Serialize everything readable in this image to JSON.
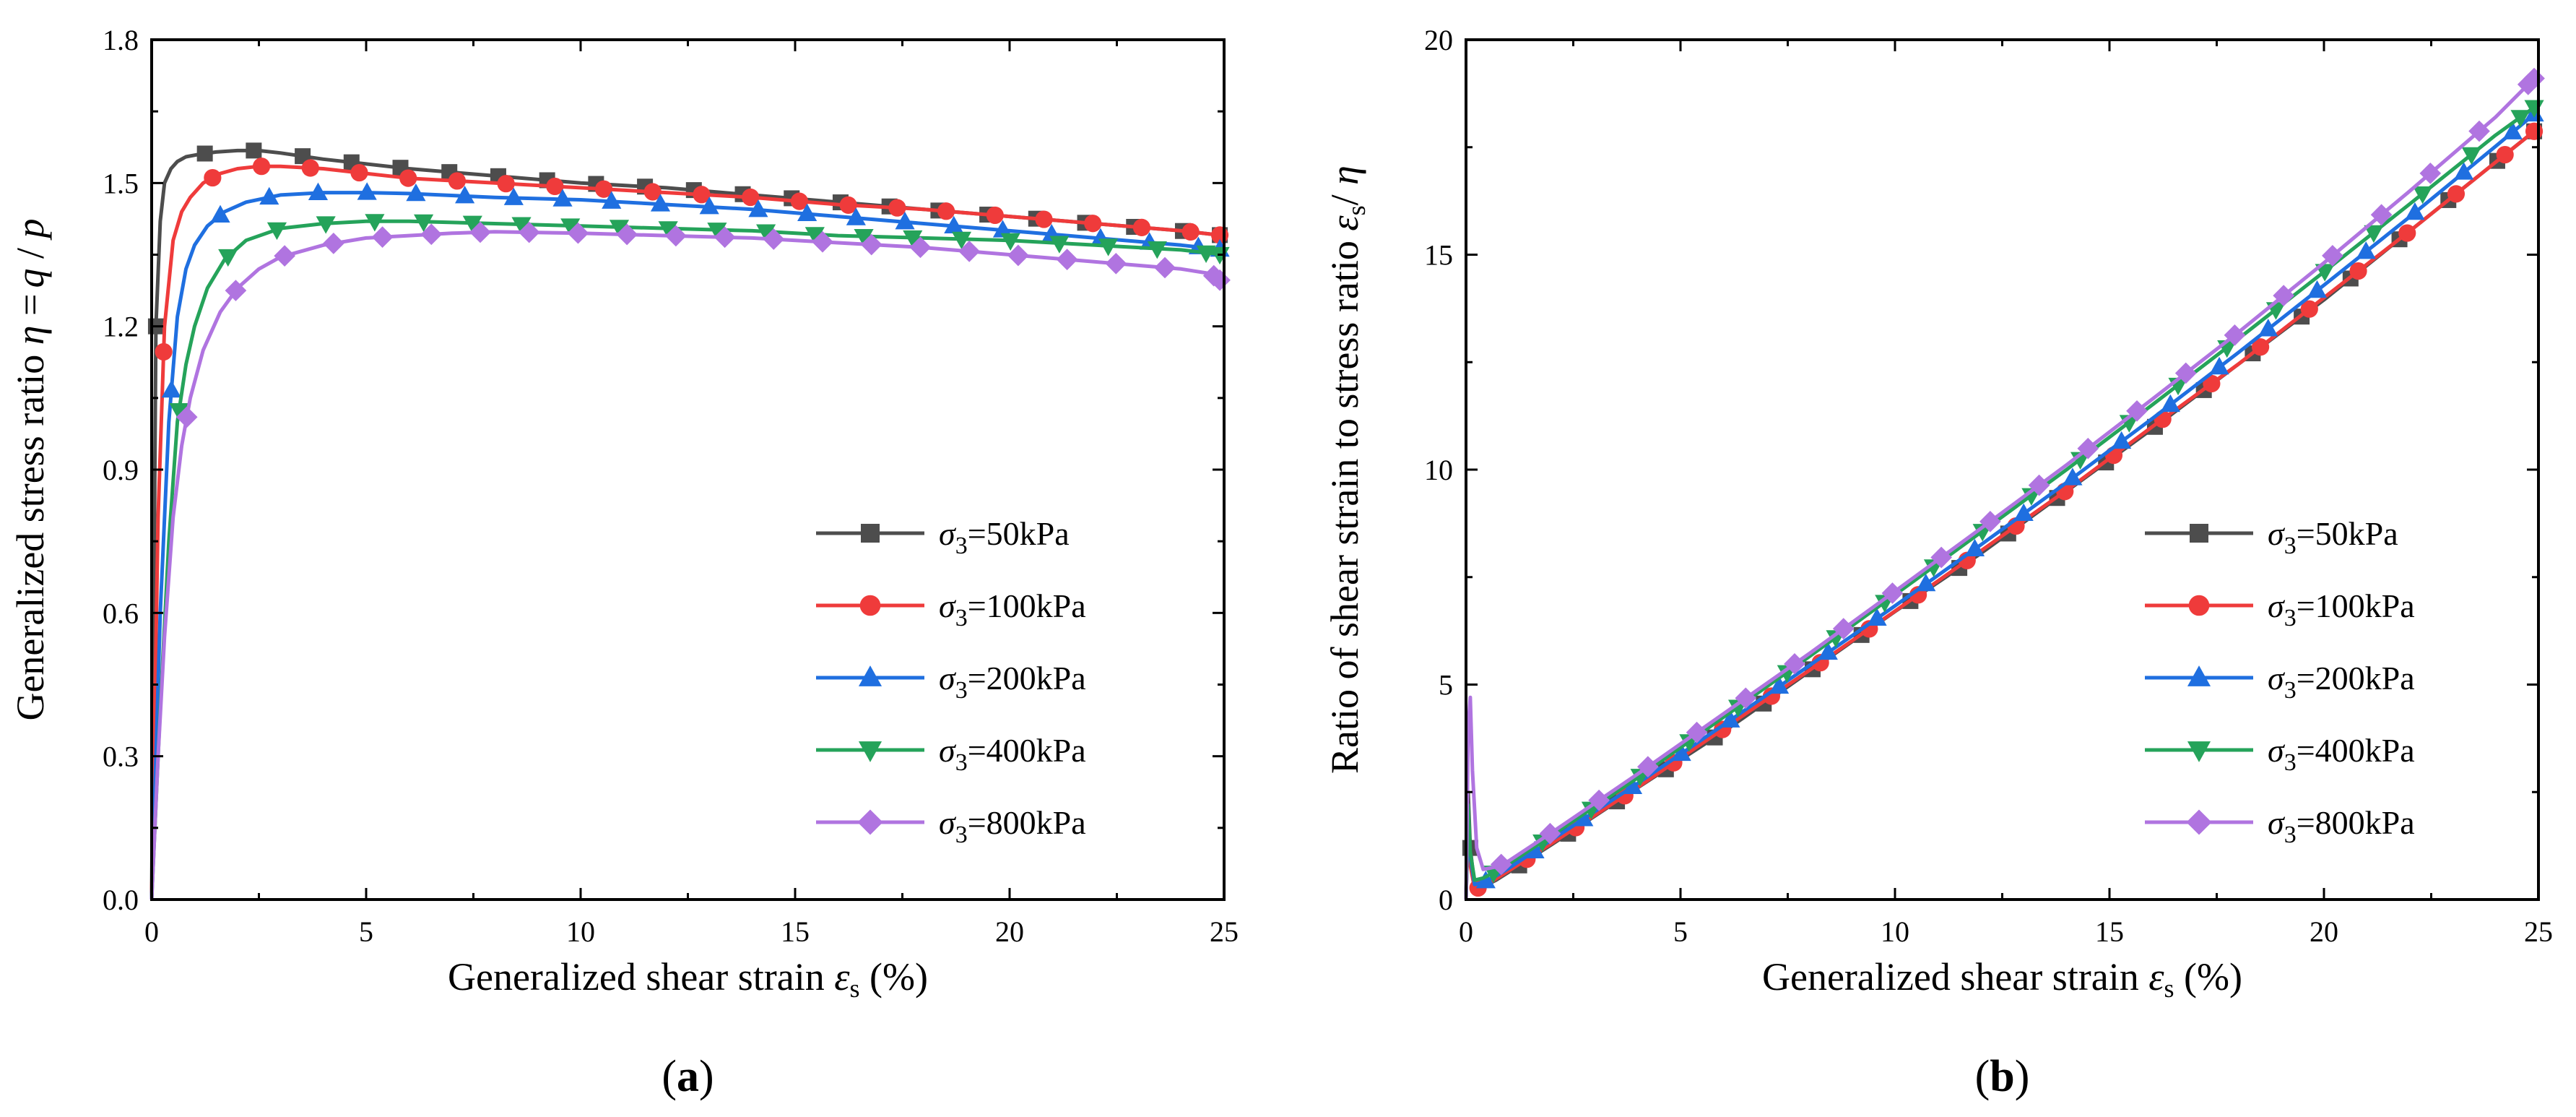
{
  "colors": {
    "s50": "#4d4d4d",
    "s100": "#ef3b3b",
    "s200": "#1f6fe0",
    "s400": "#25a35a",
    "s800": "#b074e0"
  },
  "panels": [
    {
      "id": "a",
      "caption_letter": "a",
      "xlabel_prefix": "Generalized shear strain ",
      "xlabel_symbol": "ε",
      "xlabel_sub": "s",
      "xlabel_suffix": " (%)",
      "ylabel_prefix": "Generalized stress ratio ",
      "ylabel_symbol": "η",
      "ylabel_mid": " =",
      "ylabel_q": "q",
      "ylabel_slash": " / ",
      "ylabel_p": "p"
    },
    {
      "id": "b",
      "caption_letter": "b",
      "xlabel_prefix": "Generalized shear strain ",
      "xlabel_symbol": "ε",
      "xlabel_sub": "s",
      "xlabel_suffix": " (%)",
      "ylabel_prefix": "Ratio of shear strain to stress ratio ",
      "ylabel_symbol": "ε",
      "ylabel_sub": "s",
      "ylabel_slash": "/ ",
      "ylabel_eta": "η"
    }
  ],
  "chart_data": [
    {
      "type": "line",
      "panel": "a",
      "xlabel": "Generalized shear strain εs (%)",
      "ylabel": "Generalized stress ratio η = q / p",
      "xlim": [
        0,
        25
      ],
      "ylim": [
        0,
        1.8
      ],
      "xticks": [
        0,
        5,
        10,
        15,
        20,
        25
      ],
      "yticks": [
        0.0,
        0.3,
        0.6,
        0.9,
        1.2,
        1.5,
        1.8
      ],
      "ytick_labels": [
        "0.0",
        "0.3",
        "0.6",
        "0.9",
        "1.2",
        "1.5",
        "1.8"
      ],
      "legend_position": "right",
      "series": [
        {
          "name": "σ3=50kPa",
          "sym": "σ",
          "sub": "3",
          "rest": "=50kPa",
          "color_key": "s50",
          "marker": "square",
          "x": [
            0,
            0.1,
            0.2,
            0.3,
            0.45,
            0.6,
            0.8,
            1.1,
            1.5,
            2.0,
            2.5,
            3.0,
            4,
            5,
            6,
            8,
            10,
            12,
            14,
            16,
            18,
            20,
            22,
            24,
            25
          ],
          "y": [
            0,
            1.2,
            1.42,
            1.5,
            1.53,
            1.545,
            1.555,
            1.56,
            1.565,
            1.568,
            1.568,
            1.563,
            1.55,
            1.54,
            1.53,
            1.515,
            1.5,
            1.49,
            1.475,
            1.46,
            1.445,
            1.43,
            1.415,
            1.4,
            1.39
          ]
        },
        {
          "name": "σ3=100kPa",
          "sym": "σ",
          "sub": "3",
          "rest": "=100kPa",
          "color_key": "s100",
          "marker": "circle",
          "x": [
            0,
            0.15,
            0.3,
            0.5,
            0.7,
            0.9,
            1.2,
            1.6,
            2.0,
            2.5,
            3.0,
            4,
            5,
            6,
            8,
            10,
            12,
            14,
            16,
            18,
            20,
            22,
            24,
            25
          ],
          "y": [
            0,
            0.8,
            1.2,
            1.38,
            1.44,
            1.47,
            1.5,
            1.52,
            1.53,
            1.535,
            1.535,
            1.53,
            1.52,
            1.51,
            1.5,
            1.49,
            1.48,
            1.47,
            1.455,
            1.445,
            1.43,
            1.415,
            1.4,
            1.39
          ]
        },
        {
          "name": "σ3=200kPa",
          "sym": "σ",
          "sub": "3",
          "rest": "=200kPa",
          "color_key": "s200",
          "marker": "triangle-up",
          "x": [
            0,
            0.2,
            0.4,
            0.6,
            0.8,
            1.0,
            1.3,
            1.7,
            2.2,
            3.0,
            4,
            5,
            6,
            8,
            10,
            12,
            14,
            16,
            18,
            20,
            22,
            24,
            25
          ],
          "y": [
            0,
            0.6,
            1.0,
            1.22,
            1.32,
            1.37,
            1.41,
            1.44,
            1.46,
            1.475,
            1.48,
            1.48,
            1.478,
            1.47,
            1.465,
            1.455,
            1.445,
            1.43,
            1.415,
            1.4,
            1.385,
            1.37,
            1.36
          ]
        },
        {
          "name": "σ3=400kPa",
          "sym": "σ",
          "sub": "3",
          "rest": "=400kPa",
          "color_key": "s400",
          "marker": "triangle-down",
          "x": [
            0,
            0.2,
            0.4,
            0.6,
            0.8,
            1.0,
            1.3,
            1.7,
            2.2,
            3.0,
            4,
            5,
            6,
            8,
            10,
            12,
            14,
            16,
            18,
            20,
            22,
            24,
            25
          ],
          "y": [
            0,
            0.4,
            0.75,
            1.0,
            1.12,
            1.2,
            1.28,
            1.34,
            1.38,
            1.405,
            1.415,
            1.42,
            1.42,
            1.415,
            1.41,
            1.405,
            1.4,
            1.39,
            1.385,
            1.38,
            1.37,
            1.36,
            1.35
          ]
        },
        {
          "name": "σ3=800kPa",
          "sym": "σ",
          "sub": "3",
          "rest": "=800kPa",
          "color_key": "s800",
          "marker": "diamond",
          "x": [
            0,
            0.15,
            0.3,
            0.5,
            0.7,
            0.9,
            1.2,
            1.6,
            2.0,
            2.5,
            3.0,
            4,
            5,
            6,
            7,
            8,
            10,
            12,
            14,
            16,
            18,
            20,
            22,
            24,
            24.7,
            25
          ],
          "y": [
            0,
            0.3,
            0.55,
            0.8,
            0.95,
            1.05,
            1.15,
            1.23,
            1.28,
            1.32,
            1.345,
            1.37,
            1.385,
            1.39,
            1.395,
            1.398,
            1.395,
            1.39,
            1.385,
            1.375,
            1.365,
            1.35,
            1.335,
            1.32,
            1.31,
            1.29
          ]
        }
      ]
    },
    {
      "type": "line",
      "panel": "b",
      "xlabel": "Generalized shear strain εs (%)",
      "ylabel": "Ratio of shear strain to stress ratio εs/ η",
      "xlim": [
        0,
        25
      ],
      "ylim": [
        0,
        20
      ],
      "xticks": [
        0,
        5,
        10,
        15,
        20,
        25
      ],
      "yticks": [
        0,
        5,
        10,
        15,
        20
      ],
      "ytick_labels": [
        "0",
        "5",
        "10",
        "15",
        "20"
      ],
      "legend_position": "right",
      "series": [
        {
          "name": "σ3=50kPa",
          "sym": "σ",
          "sub": "3",
          "rest": "=50kPa",
          "color_key": "s50",
          "marker": "square",
          "x": [
            0,
            0.05,
            0.1,
            0.2,
            0.4,
            0.7,
            1.0,
            2,
            4,
            6,
            8,
            10,
            12,
            14,
            16,
            18,
            20,
            22,
            24,
            25
          ],
          "y": [
            0,
            2.5,
            1.2,
            0.3,
            0.3,
            0.45,
            0.64,
            1.28,
            2.6,
            3.9,
            5.3,
            6.7,
            8.05,
            9.5,
            10.95,
            12.45,
            13.95,
            15.55,
            17.15,
            17.95
          ]
        },
        {
          "name": "σ3=100kPa",
          "sym": "σ",
          "sub": "3",
          "rest": "=100kPa",
          "color_key": "s100",
          "marker": "circle",
          "x": [
            0,
            0.05,
            0.1,
            0.2,
            0.4,
            0.7,
            1.0,
            2,
            4,
            6,
            8,
            10,
            12,
            14,
            16,
            18,
            20,
            22,
            24,
            25
          ],
          "y": [
            0,
            1.8,
            0.8,
            0.25,
            0.3,
            0.48,
            0.67,
            1.31,
            2.61,
            3.97,
            5.33,
            6.71,
            8.11,
            9.52,
            11.0,
            12.45,
            14.0,
            15.55,
            17.15,
            17.95
          ]
        },
        {
          "name": "σ3=200kPa",
          "sym": "σ",
          "sub": "3",
          "rest": "=200kPa",
          "color_key": "s200",
          "marker": "triangle-up",
          "x": [
            0,
            0.05,
            0.1,
            0.2,
            0.4,
            0.7,
            1.0,
            2,
            4,
            6,
            8,
            10,
            12,
            14,
            16,
            18,
            20,
            22,
            24,
            25
          ],
          "y": [
            0,
            2.0,
            1.0,
            0.35,
            0.4,
            0.55,
            0.73,
            1.39,
            2.7,
            4.06,
            5.44,
            6.83,
            8.25,
            9.7,
            11.19,
            12.72,
            14.29,
            15.88,
            17.52,
            18.35
          ]
        },
        {
          "name": "σ3=400kPa",
          "sym": "σ",
          "sub": "3",
          "rest": "=400kPa",
          "color_key": "s400",
          "marker": "triangle-down",
          "x": [
            0,
            0.05,
            0.1,
            0.2,
            0.4,
            0.7,
            1.0,
            2,
            4,
            6,
            8,
            10,
            12,
            14,
            16,
            18,
            20,
            22,
            24,
            25
          ],
          "y": [
            0,
            2.2,
            1.1,
            0.45,
            0.5,
            0.65,
            0.83,
            1.49,
            2.83,
            4.24,
            5.65,
            7.09,
            8.54,
            10.0,
            11.51,
            13.04,
            14.6,
            16.18,
            17.78,
            18.5
          ]
        },
        {
          "name": "σ3=800kPa",
          "sym": "σ",
          "sub": "3",
          "rest": "=800kPa",
          "color_key": "s800",
          "marker": "diamond",
          "x": [
            0,
            0.05,
            0.1,
            0.15,
            0.25,
            0.4,
            0.7,
            1.0,
            2,
            4,
            6,
            8,
            10,
            12,
            14,
            16,
            18,
            20,
            22,
            24,
            25
          ],
          "y": [
            0,
            4.0,
            4.7,
            3.0,
            1.2,
            0.7,
            0.76,
            0.9,
            1.56,
            2.92,
            4.32,
            5.72,
            7.17,
            8.63,
            10.11,
            11.64,
            13.19,
            14.81,
            16.48,
            18.2,
            19.2
          ]
        }
      ]
    }
  ]
}
